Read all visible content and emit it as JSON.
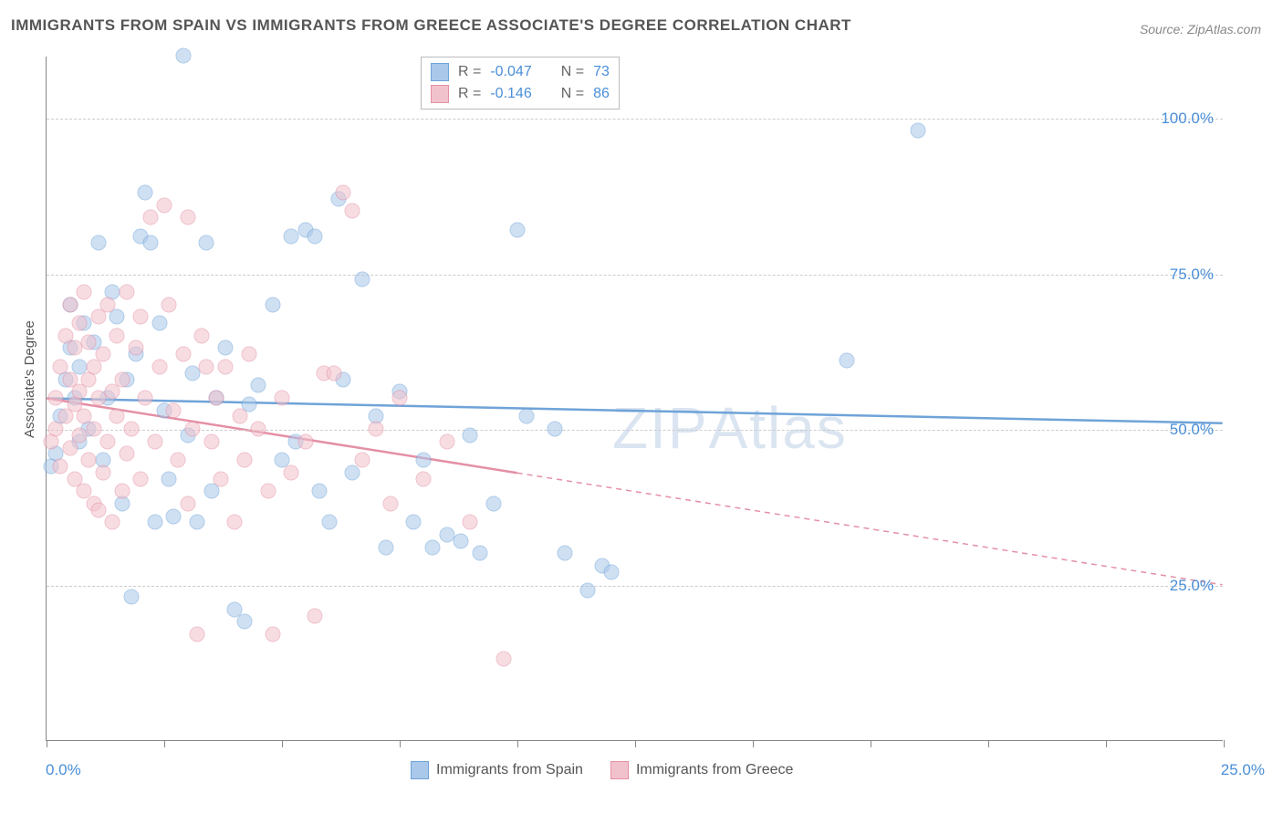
{
  "title": "IMMIGRANTS FROM SPAIN VS IMMIGRANTS FROM GREECE ASSOCIATE'S DEGREE CORRELATION CHART",
  "source_label": "Source:",
  "source_value": "ZipAtlas.com",
  "watermark_bold": "ZIP",
  "watermark_thin": "Atlas",
  "chart": {
    "type": "scatter",
    "xlim": [
      0,
      25
    ],
    "ylim": [
      0,
      110
    ],
    "x_origin_label": "0.0%",
    "x_end_label": "25.0%",
    "y_gridlines": [
      25,
      50,
      75,
      100
    ],
    "y_tick_labels": [
      "25.0%",
      "50.0%",
      "75.0%",
      "100.0%"
    ],
    "x_tick_positions": [
      0,
      2.5,
      5,
      7.5,
      10,
      12.5,
      15,
      17.5,
      20,
      22.5,
      25
    ],
    "ylabel": "Associate's Degree",
    "background_color": "#ffffff",
    "grid_color": "#cccccc",
    "axis_color": "#888888",
    "tick_label_color": "#4a8fd8",
    "series": [
      {
        "name": "Immigrants from Spain",
        "fill": "#a9c8ea",
        "stroke": "#6fa3d8",
        "R": "-0.047",
        "N": "73",
        "trend": {
          "y_start": 55,
          "y_end": 51,
          "solid_until_x": 25
        },
        "points": [
          [
            0.2,
            46
          ],
          [
            0.3,
            52
          ],
          [
            0.4,
            58
          ],
          [
            0.5,
            63
          ],
          [
            0.5,
            70
          ],
          [
            0.6,
            55
          ],
          [
            0.7,
            48
          ],
          [
            0.7,
            60
          ],
          [
            0.8,
            67
          ],
          [
            0.9,
            50
          ],
          [
            1.0,
            64
          ],
          [
            1.1,
            80
          ],
          [
            1.2,
            45
          ],
          [
            1.3,
            55
          ],
          [
            1.4,
            72
          ],
          [
            1.5,
            68
          ],
          [
            1.6,
            38
          ],
          [
            1.7,
            58
          ],
          [
            1.8,
            23
          ],
          [
            1.9,
            62
          ],
          [
            2.0,
            81
          ],
          [
            2.1,
            88
          ],
          [
            2.2,
            80
          ],
          [
            2.3,
            35
          ],
          [
            2.4,
            67
          ],
          [
            2.5,
            53
          ],
          [
            2.6,
            42
          ],
          [
            2.7,
            36
          ],
          [
            2.9,
            110
          ],
          [
            3.0,
            49
          ],
          [
            3.1,
            59
          ],
          [
            3.2,
            35
          ],
          [
            3.4,
            80
          ],
          [
            3.5,
            40
          ],
          [
            3.6,
            55
          ],
          [
            3.8,
            63
          ],
          [
            4.0,
            21
          ],
          [
            4.2,
            19
          ],
          [
            4.3,
            54
          ],
          [
            4.5,
            57
          ],
          [
            4.8,
            70
          ],
          [
            5.0,
            45
          ],
          [
            5.2,
            81
          ],
          [
            5.3,
            48
          ],
          [
            5.5,
            82
          ],
          [
            5.7,
            81
          ],
          [
            5.8,
            40
          ],
          [
            6.0,
            35
          ],
          [
            6.2,
            87
          ],
          [
            6.3,
            58
          ],
          [
            6.5,
            43
          ],
          [
            6.7,
            74
          ],
          [
            7.0,
            52
          ],
          [
            7.2,
            31
          ],
          [
            7.5,
            56
          ],
          [
            7.8,
            35
          ],
          [
            8.0,
            45
          ],
          [
            8.2,
            31
          ],
          [
            8.5,
            33
          ],
          [
            8.8,
            32
          ],
          [
            9.0,
            49
          ],
          [
            9.2,
            30
          ],
          [
            9.5,
            38
          ],
          [
            10.0,
            82
          ],
          [
            10.2,
            52
          ],
          [
            10.8,
            50
          ],
          [
            11.0,
            30
          ],
          [
            11.5,
            24
          ],
          [
            11.8,
            28
          ],
          [
            12.0,
            27
          ],
          [
            17.0,
            61
          ],
          [
            18.5,
            98
          ],
          [
            0.1,
            44
          ]
        ]
      },
      {
        "name": "Immigrants from Greece",
        "fill": "#f2c2cc",
        "stroke": "#e490a5",
        "R": "-0.146",
        "N": "86",
        "trend": {
          "y_start": 55,
          "y_end": 25,
          "solid_until_x": 10
        },
        "points": [
          [
            0.1,
            48
          ],
          [
            0.2,
            50
          ],
          [
            0.2,
            55
          ],
          [
            0.3,
            44
          ],
          [
            0.3,
            60
          ],
          [
            0.4,
            52
          ],
          [
            0.4,
            65
          ],
          [
            0.5,
            47
          ],
          [
            0.5,
            58
          ],
          [
            0.5,
            70
          ],
          [
            0.6,
            42
          ],
          [
            0.6,
            54
          ],
          [
            0.6,
            63
          ],
          [
            0.7,
            49
          ],
          [
            0.7,
            56
          ],
          [
            0.7,
            67
          ],
          [
            0.8,
            40
          ],
          [
            0.8,
            52
          ],
          [
            0.8,
            72
          ],
          [
            0.9,
            45
          ],
          [
            0.9,
            58
          ],
          [
            0.9,
            64
          ],
          [
            1.0,
            38
          ],
          [
            1.0,
            50
          ],
          [
            1.0,
            60
          ],
          [
            1.1,
            55
          ],
          [
            1.1,
            68
          ],
          [
            1.2,
            43
          ],
          [
            1.2,
            62
          ],
          [
            1.3,
            48
          ],
          [
            1.3,
            70
          ],
          [
            1.4,
            35
          ],
          [
            1.4,
            56
          ],
          [
            1.5,
            52
          ],
          [
            1.5,
            65
          ],
          [
            1.6,
            40
          ],
          [
            1.6,
            58
          ],
          [
            1.7,
            46
          ],
          [
            1.7,
            72
          ],
          [
            1.8,
            50
          ],
          [
            1.9,
            63
          ],
          [
            2.0,
            42
          ],
          [
            2.0,
            68
          ],
          [
            2.1,
            55
          ],
          [
            2.2,
            84
          ],
          [
            2.3,
            48
          ],
          [
            2.4,
            60
          ],
          [
            2.5,
            86
          ],
          [
            2.6,
            70
          ],
          [
            2.7,
            53
          ],
          [
            2.8,
            45
          ],
          [
            2.9,
            62
          ],
          [
            3.0,
            38
          ],
          [
            3.0,
            84
          ],
          [
            3.1,
            50
          ],
          [
            3.2,
            17
          ],
          [
            3.3,
            65
          ],
          [
            3.4,
            60
          ],
          [
            3.5,
            48
          ],
          [
            3.6,
            55
          ],
          [
            3.7,
            42
          ],
          [
            3.8,
            60
          ],
          [
            4.0,
            35
          ],
          [
            4.1,
            52
          ],
          [
            4.2,
            45
          ],
          [
            4.3,
            62
          ],
          [
            4.5,
            50
          ],
          [
            4.7,
            40
          ],
          [
            4.8,
            17
          ],
          [
            5.0,
            55
          ],
          [
            5.2,
            43
          ],
          [
            5.5,
            48
          ],
          [
            5.7,
            20
          ],
          [
            5.9,
            59
          ],
          [
            6.1,
            59
          ],
          [
            6.3,
            88
          ],
          [
            6.5,
            85
          ],
          [
            6.7,
            45
          ],
          [
            7.0,
            50
          ],
          [
            7.3,
            38
          ],
          [
            7.5,
            55
          ],
          [
            8.0,
            42
          ],
          [
            8.5,
            48
          ],
          [
            9.0,
            35
          ],
          [
            9.7,
            13
          ],
          [
            1.1,
            37
          ]
        ]
      }
    ]
  },
  "legend_top": {
    "R_label": "R =",
    "N_label": "N ="
  }
}
